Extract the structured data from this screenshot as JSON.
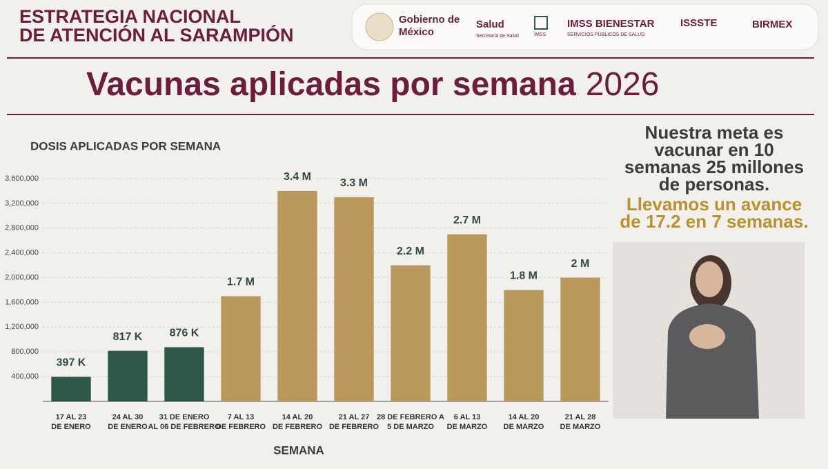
{
  "header": {
    "lines": [
      "ESTRATEGIA NACIONAL",
      "DE ATENCIÓN AL SARAMPIÓN"
    ]
  },
  "logos": {
    "gobierno": [
      "Gobierno de",
      "México"
    ],
    "salud": "Salud",
    "salud_sub": "Secretaría de Salud",
    "imss": "IMSS",
    "bienestar": "IMSS BIENESTAR",
    "bienestar_sub": "SERVICIOS PÚBLICOS DE SALUD",
    "issste": "ISSSTE",
    "birmex": "BIRMEX"
  },
  "side": {
    "meta": [
      "Nuestra meta es",
      "vacunar en 10",
      "semanas 25 millones",
      "de personas."
    ],
    "avance": [
      "Llevamos un avance",
      "de 17.2 en 7 semanas."
    ]
  },
  "chart_data": {
    "type": "bar",
    "title": "Vacunas aplicadas por semana",
    "title_year": "2026",
    "y_label": "DOSIS APLICADAS POR SEMANA",
    "x_label": "SEMANA",
    "categories": [
      [
        "17 AL 23",
        "DE ENERO"
      ],
      [
        "24 AL 30",
        "DE ENERO"
      ],
      [
        "31  DE ENERO",
        "AL 06 DE FEBRERO"
      ],
      [
        "7 AL 13",
        "DE FEBRERO"
      ],
      [
        "14 AL 20",
        "DE FEBRERO"
      ],
      [
        "21  AL 27",
        "DE FEBRERO"
      ],
      [
        "28 DE FEBRERO A",
        "5 DE MARZO"
      ],
      [
        "6  AL 13",
        "DE MARZO"
      ],
      [
        "14 AL 20",
        "DE MARZO"
      ],
      [
        "21  AL 28",
        "DE MARZO"
      ]
    ],
    "values": [
      397000,
      817000,
      876000,
      1700000,
      3400000,
      3300000,
      2200000,
      2700000,
      1800000,
      2000000
    ],
    "value_labels": [
      "397 K",
      "817 K",
      "876 K",
      "1.7 M",
      "3.4 M",
      "3.3 M",
      "2.2 M",
      "2.7 M",
      "1.8 M",
      "2 M"
    ],
    "colors": [
      "#2e5849",
      "#2e5849",
      "#2e5849",
      "#b9995e",
      "#b9995e",
      "#b9995e",
      "#b9995e",
      "#b9995e",
      "#b9995e",
      "#b9995e"
    ],
    "ylim": [
      0,
      3700000
    ],
    "yticks": [
      {
        "value": 400000,
        "label": "400,000"
      },
      {
        "value": 800000,
        "label": "800,000"
      },
      {
        "value": 1200000,
        "label": "1,200,000"
      },
      {
        "value": 1600000,
        "label": "1,600,000"
      },
      {
        "value": 2000000,
        "label": "2,000,000"
      },
      {
        "value": 2400000,
        "label": "2,400,000"
      },
      {
        "value": 2800000,
        "label": "2,800,000"
      },
      {
        "value": 3200000,
        "label": "3,200,000"
      },
      {
        "value": 3600000,
        "label": "3,600,000"
      }
    ],
    "grid": true
  }
}
